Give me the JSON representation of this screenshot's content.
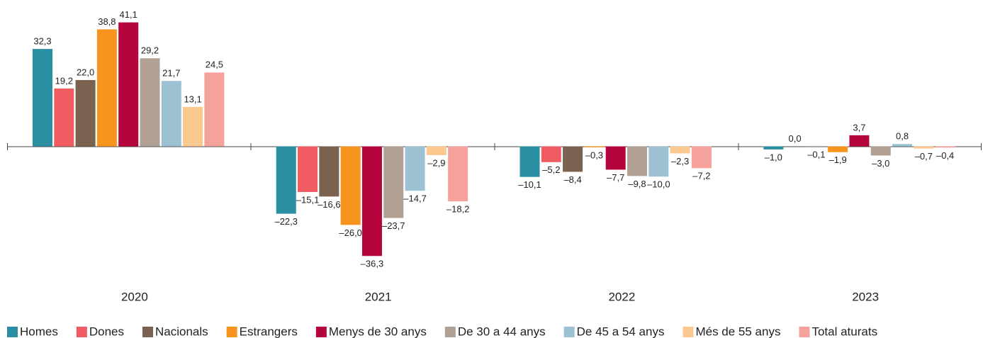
{
  "chart_data": {
    "type": "bar",
    "categories": [
      "2020",
      "2021",
      "2022",
      "2023"
    ],
    "ylim": [
      -40,
      45
    ],
    "legend": "bottom",
    "series": [
      {
        "name": "Homes",
        "color": "#2a8fa3",
        "values": [
          32.3,
          -22.3,
          -10.1,
          -1.0
        ],
        "value_labels": [
          "32,3",
          "–22,3",
          "–10,1",
          "–1,0"
        ]
      },
      {
        "name": "Dones",
        "color": "#ef5d63",
        "values": [
          19.2,
          -15.1,
          -5.2,
          0.0
        ],
        "value_labels": [
          "19,2",
          "–15,1",
          "–5,2",
          "0,0"
        ]
      },
      {
        "name": "Nacionals",
        "color": "#7a6150",
        "values": [
          22.0,
          -16.6,
          -8.4,
          -0.1
        ],
        "value_labels": [
          "22,0",
          "–16,6",
          "–8,4",
          "–0,1"
        ]
      },
      {
        "name": "Estrangers",
        "color": "#f7941d",
        "values": [
          38.8,
          -26.0,
          -0.3,
          -1.9
        ],
        "value_labels": [
          "38,8",
          "–26,0",
          "–0,3",
          "–1,9"
        ]
      },
      {
        "name": "Menys de 30 anys",
        "color": "#b5053c",
        "values": [
          41.1,
          -36.3,
          -7.7,
          3.7
        ],
        "value_labels": [
          "41,1",
          "–36,3",
          "–7,7",
          "3,7"
        ]
      },
      {
        "name": "De 30 a 44 anys",
        "color": "#b0a194",
        "values": [
          29.2,
          -23.7,
          -9.8,
          -3.0
        ],
        "value_labels": [
          "29,2",
          "–23,7",
          "–9,8",
          "–3,0"
        ]
      },
      {
        "name": "De 45 a 54 anys",
        "color": "#9cc1d3",
        "values": [
          21.7,
          -14.7,
          -10.0,
          0.8
        ],
        "value_labels": [
          "21,7",
          "–14,7",
          "–10,0",
          "0,8"
        ]
      },
      {
        "name": "Més de 55 anys",
        "color": "#fbc88f",
        "values": [
          13.1,
          -2.9,
          -2.3,
          -0.7
        ],
        "value_labels": [
          "13,1",
          "–2,9",
          "–2,3",
          "–0,7"
        ]
      },
      {
        "name": "Total aturats",
        "color": "#f5a19c",
        "values": [
          24.5,
          -18.2,
          -7.2,
          -0.4
        ],
        "value_labels": [
          "24,5",
          "–18,2",
          "–7,2",
          "–0,4"
        ]
      }
    ]
  }
}
